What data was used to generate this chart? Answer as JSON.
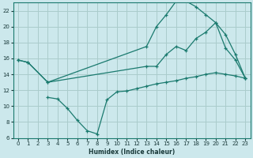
{
  "xlabel": "Humidex (Indice chaleur)",
  "bg_color": "#cce8ec",
  "grid_color": "#aacccc",
  "line_color": "#1a7a6e",
  "xlim": [
    -0.5,
    23.5
  ],
  "ylim": [
    6,
    23
  ],
  "xticks": [
    0,
    1,
    2,
    3,
    4,
    5,
    6,
    7,
    8,
    9,
    10,
    11,
    12,
    13,
    14,
    15,
    16,
    17,
    18,
    19,
    20,
    21,
    22,
    23
  ],
  "yticks": [
    6,
    8,
    10,
    12,
    14,
    16,
    18,
    20,
    22
  ],
  "line1_x": [
    0,
    1,
    3,
    13,
    14,
    15,
    16,
    17,
    18,
    19,
    20,
    21,
    22,
    23
  ],
  "line1_y": [
    15.8,
    15.5,
    13.0,
    17.5,
    20.0,
    21.5,
    23.2,
    23.2,
    22.5,
    21.5,
    20.5,
    17.3,
    15.8,
    13.5
  ],
  "line2_x": [
    0,
    1,
    3,
    13,
    14,
    15,
    16,
    17,
    18,
    19,
    20,
    21,
    22,
    23
  ],
  "line2_y": [
    15.8,
    15.5,
    13.0,
    15.0,
    15.0,
    16.5,
    17.5,
    17.0,
    18.5,
    19.3,
    20.5,
    19.0,
    16.5,
    13.5
  ],
  "line3_x": [
    3,
    4,
    5,
    6,
    7,
    8,
    9,
    10,
    11,
    12,
    13,
    14,
    15,
    16,
    17,
    18,
    19,
    20,
    21,
    22,
    23
  ],
  "line3_y": [
    11.1,
    10.9,
    9.7,
    8.2,
    6.9,
    6.5,
    10.8,
    11.8,
    11.9,
    12.2,
    12.5,
    12.8,
    13.0,
    13.2,
    13.5,
    13.7,
    14.0,
    14.2,
    14.0,
    13.8,
    13.5
  ]
}
